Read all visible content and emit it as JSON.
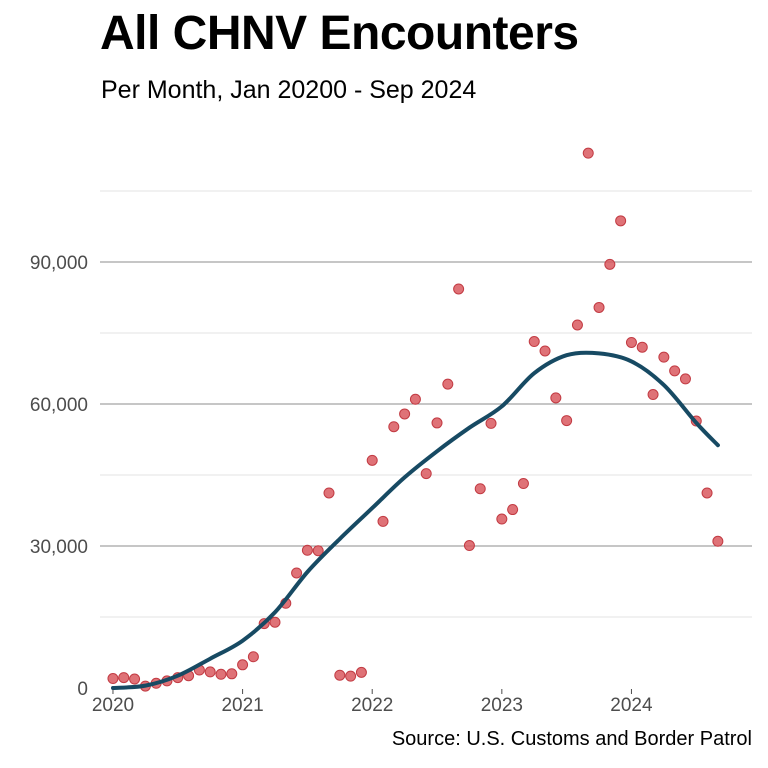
{
  "chart_data": {
    "type": "scatter",
    "title": "All CHNV Encounters",
    "subtitle": "Per Month, Jan 20200 - Sep 2024",
    "source": "Source: U.S. Customs and Border Patrol",
    "xlabel": "",
    "ylabel": "",
    "xlim": [
      2019.9,
      2024.93
    ],
    "ylim": [
      0,
      120000
    ],
    "x_ticks": [
      {
        "value": 2020,
        "label": "2020"
      },
      {
        "value": 2021,
        "label": "2021"
      },
      {
        "value": 2022,
        "label": "2022"
      },
      {
        "value": 2023,
        "label": "2023"
      },
      {
        "value": 2024,
        "label": "2024"
      }
    ],
    "y_ticks": [
      {
        "value": 0,
        "label": "0"
      },
      {
        "value": 30000,
        "label": "30,000"
      },
      {
        "value": 60000,
        "label": "60,000"
      },
      {
        "value": 90000,
        "label": "90,000"
      }
    ],
    "grid": true,
    "colors": {
      "points": "#d9595f",
      "trend": "#174a63",
      "grid_major": "#8c8c8c",
      "grid_minor": "#e3e3e3"
    },
    "series": [
      {
        "type": "points",
        "x": [
          "2020-01",
          "2020-02",
          "2020-03",
          "2020-04",
          "2020-05",
          "2020-06",
          "2020-07",
          "2020-08",
          "2020-09",
          "2020-10",
          "2020-11",
          "2020-12",
          "2021-01",
          "2021-02",
          "2021-03",
          "2021-04",
          "2021-05",
          "2021-06",
          "2021-07",
          "2021-08",
          "2021-09",
          "2021-10",
          "2021-11",
          "2021-12",
          "2022-01",
          "2022-02",
          "2022-03",
          "2022-04",
          "2022-05",
          "2022-06",
          "2022-07",
          "2022-08",
          "2022-09",
          "2022-10",
          "2022-11",
          "2022-12",
          "2023-01",
          "2023-02",
          "2023-03",
          "2023-04",
          "2023-05",
          "2023-06",
          "2023-07",
          "2023-08",
          "2023-09",
          "2023-10",
          "2023-11",
          "2023-12",
          "2024-01",
          "2024-02",
          "2024-03",
          "2024-04",
          "2024-05",
          "2024-06",
          "2024-07",
          "2024-08",
          "2024-09"
        ],
        "y": [
          2000,
          2200,
          1900,
          400,
          1000,
          1500,
          2200,
          2600,
          3800,
          3400,
          2900,
          3000,
          4900,
          6600,
          13600,
          13900,
          17900,
          24300,
          29100,
          29000,
          41200,
          2700,
          2500,
          3300,
          48100,
          35200,
          55200,
          57900,
          61000,
          45300,
          56000,
          64200,
          84300,
          30100,
          42100,
          55900,
          35700,
          37700,
          43200,
          73200,
          71200,
          61300,
          56500,
          76700,
          113000,
          80400,
          89500,
          98700,
          73000,
          72000,
          62000,
          69900,
          67000,
          65300,
          56400,
          41200,
          31000
        ]
      },
      {
        "type": "trend",
        "x": [
          "2020-01",
          "2020-04",
          "2020-07",
          "2020-10",
          "2021-01",
          "2021-04",
          "2021-07",
          "2021-10",
          "2022-01",
          "2022-04",
          "2022-07",
          "2022-10",
          "2023-01",
          "2023-04",
          "2023-07",
          "2023-10",
          "2024-01",
          "2024-04",
          "2024-07",
          "2024-09"
        ],
        "y": [
          0,
          500,
          2600,
          6200,
          10000,
          16000,
          24500,
          31500,
          38000,
          44500,
          50000,
          55000,
          59500,
          66500,
          70300,
          70700,
          69000,
          64000,
          56000,
          51300
        ]
      }
    ]
  }
}
